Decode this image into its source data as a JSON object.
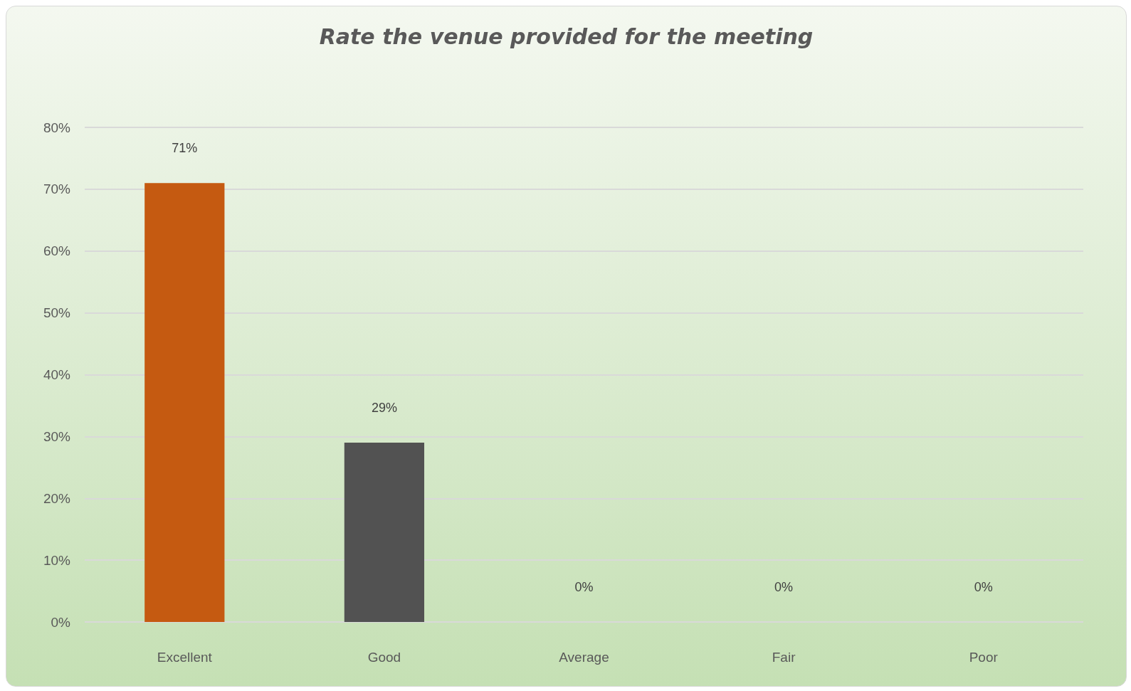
{
  "chart_data": {
    "type": "bar",
    "title": "Rate the venue provided for the meeting",
    "categories": [
      "Excellent",
      "Good",
      "Average",
      "Fair",
      "Poor"
    ],
    "values": [
      71,
      29,
      0,
      0,
      0
    ],
    "colors": [
      "#c55a11",
      "#525252",
      "#c9c400",
      "#c49000",
      "#9a3f0a"
    ],
    "value_labels": [
      "71%",
      "29%",
      "0%",
      "0%",
      "0%"
    ],
    "ylim": [
      0,
      80
    ],
    "yticks": [
      {
        "value": 0,
        "label": "0%"
      },
      {
        "value": 10,
        "label": "10%"
      },
      {
        "value": 20,
        "label": "20%"
      },
      {
        "value": 30,
        "label": "30%"
      },
      {
        "value": 40,
        "label": "40%"
      },
      {
        "value": 50,
        "label": "50%"
      },
      {
        "value": 60,
        "label": "60%"
      },
      {
        "value": 70,
        "label": "70%"
      },
      {
        "value": 80,
        "label": "80%"
      }
    ],
    "grid": "y"
  }
}
